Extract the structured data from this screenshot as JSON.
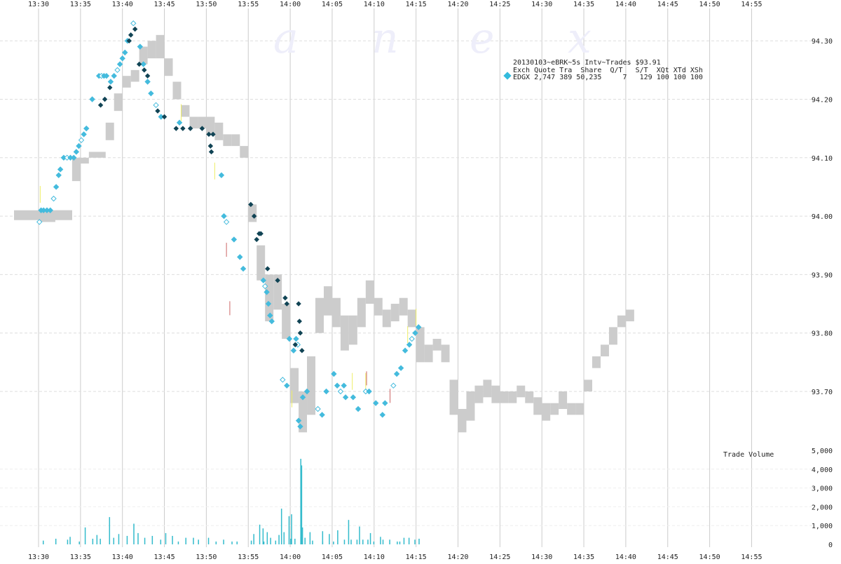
{
  "chart_data": {
    "type": "scatter",
    "watermark": [
      "a",
      "n",
      "e",
      "x"
    ],
    "legend": {
      "title": "20130103~eBRK~5s Intv~Trades $93.91",
      "header": "Exch Quote Tra  Share  Q/T   S/T  XQt XTd XSh",
      "row": "EDGX 2,747 389 50,235     7   129 100 100 100",
      "marker_color": "#33bbdd"
    },
    "volume_label": "Trade Volume",
    "x_ticks": [
      "13:30",
      "13:35",
      "13:40",
      "13:45",
      "13:50",
      "13:55",
      "14:00",
      "14:05",
      "14:10",
      "14:15",
      "14:20",
      "14:25",
      "14:30",
      "14:35",
      "14:40",
      "14:45",
      "14:50",
      "14:55"
    ],
    "price_axis": {
      "ticks": [
        "93.70",
        "93.80",
        "93.90",
        "94.00",
        "94.10",
        "94.20",
        "94.30"
      ],
      "range": [
        93.65,
        94.35
      ]
    },
    "volume_axis": {
      "ticks": [
        "0",
        "1,000",
        "2,000",
        "3,000",
        "4,000",
        "5,000"
      ],
      "range": [
        0,
        5000
      ]
    },
    "colors": {
      "quote_band": "#cccccc",
      "trade_light": "#44bbdd",
      "trade_dark": "#114455",
      "grid_v": "#cccccc",
      "grid_h": "#dddddd",
      "volume_bar": "#33bbcc",
      "ask_tick": "#eeee66",
      "bid_tick": "#cc6666"
    },
    "quote_band": [
      [
        0,
        93.99,
        94.0
      ],
      [
        2,
        94.0,
        94.01
      ],
      [
        4,
        94.06,
        94.1
      ],
      [
        5,
        94.09,
        94.1
      ],
      [
        6,
        94.1,
        94.11
      ],
      [
        8,
        94.13,
        94.16
      ],
      [
        9,
        94.18,
        94.21
      ],
      [
        10,
        94.22,
        94.24
      ],
      [
        11,
        94.23,
        94.25
      ],
      [
        12,
        94.26,
        94.29
      ],
      [
        13,
        94.27,
        94.3
      ],
      [
        14,
        94.27,
        94.31
      ],
      [
        15,
        94.24,
        94.27
      ],
      [
        16,
        94.2,
        94.23
      ],
      [
        17,
        94.17,
        94.19
      ],
      [
        18,
        94.15,
        94.17
      ],
      [
        19,
        94.15,
        94.17
      ],
      [
        20,
        94.14,
        94.17
      ],
      [
        21,
        94.13,
        94.16
      ],
      [
        22,
        94.12,
        94.14
      ],
      [
        23,
        94.12,
        94.14
      ],
      [
        24,
        94.1,
        94.12
      ],
      [
        25,
        93.99,
        94.02
      ],
      [
        26,
        93.89,
        93.95
      ],
      [
        27,
        93.82,
        93.9
      ],
      [
        28,
        93.84,
        93.9
      ],
      [
        29,
        93.79,
        93.85
      ],
      [
        30,
        93.68,
        93.74
      ],
      [
        31,
        93.63,
        93.7
      ],
      [
        32,
        93.66,
        93.76
      ],
      [
        33,
        93.8,
        93.86
      ],
      [
        34,
        93.83,
        93.88
      ],
      [
        35,
        93.81,
        93.86
      ],
      [
        36,
        93.77,
        93.83
      ],
      [
        37,
        93.78,
        93.83
      ],
      [
        38,
        93.81,
        93.86
      ],
      [
        39,
        93.85,
        93.89
      ],
      [
        40,
        93.83,
        93.86
      ],
      [
        41,
        93.81,
        93.84
      ],
      [
        42,
        93.82,
        93.85
      ],
      [
        43,
        93.83,
        93.86
      ],
      [
        44,
        93.81,
        93.84
      ],
      [
        45,
        93.75,
        93.81
      ],
      [
        46,
        93.75,
        93.78
      ],
      [
        47,
        93.77,
        93.79
      ],
      [
        48,
        93.75,
        93.78
      ],
      [
        49,
        93.66,
        93.72
      ],
      [
        50,
        93.63,
        93.67
      ],
      [
        51,
        93.65,
        93.7
      ],
      [
        52,
        93.68,
        93.71
      ],
      [
        53,
        93.69,
        93.72
      ],
      [
        54,
        93.68,
        93.71
      ],
      [
        55,
        93.68,
        93.7
      ],
      [
        56,
        93.68,
        93.7
      ],
      [
        57,
        93.69,
        93.71
      ],
      [
        58,
        93.68,
        93.7
      ],
      [
        59,
        93.66,
        93.69
      ],
      [
        60,
        93.65,
        93.68
      ],
      [
        61,
        93.66,
        93.68
      ],
      [
        62,
        93.67,
        93.7
      ],
      [
        63,
        93.66,
        93.68
      ],
      [
        64,
        93.66,
        93.68
      ],
      [
        65,
        93.7,
        93.72
      ],
      [
        66,
        93.74,
        93.76
      ],
      [
        67,
        93.76,
        93.78
      ],
      [
        68,
        93.78,
        93.81
      ],
      [
        69,
        93.81,
        93.83
      ],
      [
        70,
        93.82,
        93.84
      ]
    ],
    "trades_light": [
      [
        0.1,
        93.99
      ],
      [
        0.3,
        94.01
      ],
      [
        0.6,
        94.01
      ],
      [
        1.0,
        94.01
      ],
      [
        1.4,
        94.01
      ],
      [
        1.8,
        94.03
      ],
      [
        2.1,
        94.05
      ],
      [
        2.4,
        94.07
      ],
      [
        2.6,
        94.08
      ],
      [
        3.0,
        94.1
      ],
      [
        3.4,
        94.1
      ],
      [
        3.8,
        94.1
      ],
      [
        4.2,
        94.1
      ],
      [
        4.5,
        94.11
      ],
      [
        4.8,
        94.12
      ],
      [
        5.1,
        94.13
      ],
      [
        5.4,
        94.14
      ],
      [
        5.7,
        94.15
      ],
      [
        6.4,
        94.2
      ],
      [
        7.2,
        94.24
      ],
      [
        7.5,
        94.24
      ],
      [
        7.8,
        94.24
      ],
      [
        8.1,
        94.24
      ],
      [
        8.6,
        94.23
      ],
      [
        9.0,
        94.24
      ],
      [
        9.4,
        94.25
      ],
      [
        9.7,
        94.26
      ],
      [
        10.0,
        94.27
      ],
      [
        10.3,
        94.28
      ],
      [
        10.6,
        94.3
      ],
      [
        11.3,
        94.33
      ],
      [
        12.1,
        94.29
      ],
      [
        12.5,
        94.26
      ],
      [
        13.0,
        94.23
      ],
      [
        13.4,
        94.21
      ],
      [
        14.0,
        94.19
      ],
      [
        14.6,
        94.17
      ],
      [
        16.8,
        94.16
      ],
      [
        21.8,
        94.07
      ],
      [
        22.1,
        94.0
      ],
      [
        22.4,
        93.99
      ],
      [
        23.3,
        93.96
      ],
      [
        24.0,
        93.93
      ],
      [
        24.4,
        93.91
      ],
      [
        26.8,
        93.89
      ],
      [
        27.0,
        93.88
      ],
      [
        27.2,
        93.87
      ],
      [
        27.4,
        93.85
      ],
      [
        27.6,
        93.83
      ],
      [
        27.8,
        93.82
      ],
      [
        29.1,
        93.72
      ],
      [
        29.6,
        93.71
      ],
      [
        29.9,
        93.79
      ],
      [
        30.4,
        93.77
      ],
      [
        30.7,
        93.79
      ],
      [
        30.9,
        93.78
      ],
      [
        31.0,
        93.65
      ],
      [
        31.2,
        93.64
      ],
      [
        31.5,
        93.69
      ],
      [
        32.0,
        93.7
      ],
      [
        33.3,
        93.67
      ],
      [
        33.8,
        93.66
      ],
      [
        34.3,
        93.7
      ],
      [
        35.2,
        93.73
      ],
      [
        35.6,
        93.71
      ],
      [
        36.0,
        93.7
      ],
      [
        36.4,
        93.71
      ],
      [
        36.6,
        93.69
      ],
      [
        37.5,
        93.69
      ],
      [
        38.1,
        93.67
      ],
      [
        39.0,
        93.7
      ],
      [
        39.4,
        93.7
      ],
      [
        40.2,
        93.68
      ],
      [
        41.0,
        93.66
      ],
      [
        41.3,
        93.68
      ],
      [
        42.3,
        93.71
      ],
      [
        42.7,
        93.73
      ],
      [
        43.2,
        93.74
      ],
      [
        43.7,
        93.77
      ],
      [
        44.2,
        93.78
      ],
      [
        44.5,
        93.79
      ],
      [
        44.9,
        93.8
      ],
      [
        45.3,
        93.81
      ]
    ],
    "trades_dark": [
      [
        7.4,
        94.19
      ],
      [
        7.9,
        94.2
      ],
      [
        8.5,
        94.22
      ],
      [
        10.8,
        94.3
      ],
      [
        11.0,
        94.31
      ],
      [
        11.5,
        94.32
      ],
      [
        12.0,
        94.26
      ],
      [
        12.6,
        94.25
      ],
      [
        13.0,
        94.24
      ],
      [
        14.2,
        94.18
      ],
      [
        15.0,
        94.17
      ],
      [
        16.4,
        94.15
      ],
      [
        17.2,
        94.15
      ],
      [
        18.1,
        94.15
      ],
      [
        19.5,
        94.15
      ],
      [
        20.3,
        94.14
      ],
      [
        20.5,
        94.12
      ],
      [
        20.6,
        94.11
      ],
      [
        20.8,
        94.14
      ],
      [
        25.3,
        94.02
      ],
      [
        25.7,
        94.0
      ],
      [
        26.0,
        93.96
      ],
      [
        26.3,
        93.97
      ],
      [
        26.5,
        93.97
      ],
      [
        27.3,
        93.91
      ],
      [
        28.5,
        93.89
      ],
      [
        29.4,
        93.86
      ],
      [
        29.6,
        93.85
      ],
      [
        30.6,
        93.78
      ],
      [
        31.0,
        93.85
      ],
      [
        31.1,
        93.82
      ],
      [
        31.2,
        93.8
      ],
      [
        31.4,
        93.77
      ]
    ],
    "volume": [
      [
        0.5,
        200
      ],
      [
        2.0,
        300
      ],
      [
        3.4,
        250
      ],
      [
        3.7,
        400
      ],
      [
        4.8,
        150
      ],
      [
        5.5,
        900
      ],
      [
        6.4,
        300
      ],
      [
        6.9,
        500
      ],
      [
        7.3,
        300
      ],
      [
        8.4,
        1450
      ],
      [
        8.9,
        350
      ],
      [
        9.5,
        550
      ],
      [
        10.5,
        450
      ],
      [
        11.3,
        1100
      ],
      [
        11.8,
        600
      ],
      [
        12.6,
        350
      ],
      [
        13.5,
        450
      ],
      [
        14.5,
        250
      ],
      [
        15.1,
        600
      ],
      [
        15.9,
        450
      ],
      [
        16.6,
        150
      ],
      [
        17.5,
        350
      ],
      [
        18.4,
        350
      ],
      [
        19.0,
        250
      ],
      [
        20.2,
        350
      ],
      [
        21.1,
        150
      ],
      [
        22.0,
        250
      ],
      [
        23.0,
        150
      ],
      [
        23.6,
        150
      ],
      [
        25.3,
        200
      ],
      [
        26.8,
        150
      ],
      [
        28.2,
        200
      ],
      [
        28.6,
        500
      ],
      [
        29.2,
        650
      ],
      [
        30.0,
        300
      ],
      [
        30.5,
        300
      ],
      [
        31.2,
        400
      ],
      [
        31.7,
        350
      ],
      [
        32.6,
        200
      ],
      [
        33.8,
        150
      ],
      [
        34.6,
        550
      ],
      [
        35.1,
        150
      ],
      [
        36.4,
        250
      ],
      [
        37.2,
        250
      ],
      [
        37.9,
        250
      ],
      [
        38.6,
        250
      ],
      [
        39.2,
        250
      ],
      [
        39.9,
        150
      ],
      [
        41.0,
        250
      ],
      [
        41.8,
        250
      ],
      [
        42.7,
        150
      ],
      [
        43.5,
        350
      ],
      [
        44.1,
        350
      ],
      [
        44.8,
        250
      ],
      [
        45.3,
        300
      ],
      [
        25.6,
        550
      ],
      [
        26.3,
        1050
      ],
      [
        26.7,
        850
      ],
      [
        27.2,
        650
      ],
      [
        27.6,
        350
      ],
      [
        28.9,
        1900
      ],
      [
        29.8,
        1500
      ],
      [
        30.1,
        1600
      ],
      [
        31.2,
        4550
      ],
      [
        31.3,
        4200
      ],
      [
        31.4,
        900
      ],
      [
        32.3,
        650
      ],
      [
        33.8,
        700
      ],
      [
        35.6,
        750
      ],
      [
        36.9,
        1300
      ],
      [
        38.2,
        950
      ],
      [
        39.5,
        600
      ],
      [
        40.7,
        400
      ],
      [
        43.0,
        150
      ]
    ]
  }
}
